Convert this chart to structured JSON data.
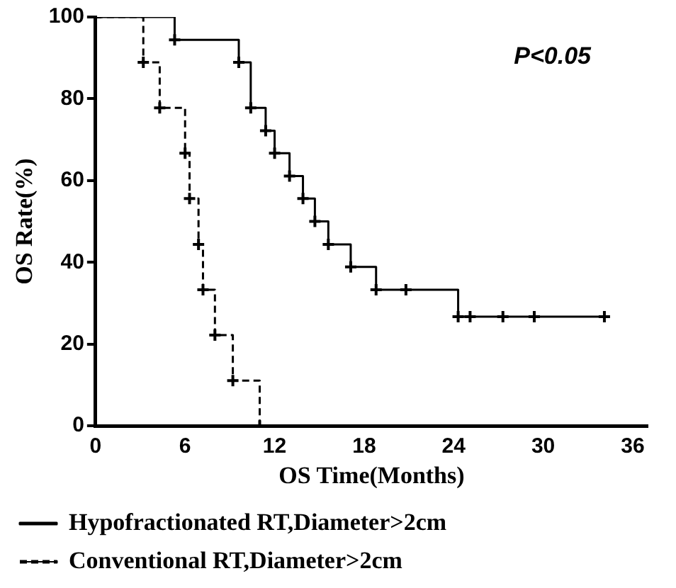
{
  "chart_data": {
    "type": "step",
    "xlabel": "OS Time(Months)",
    "ylabel": "OS Rate(%)",
    "xlim": [
      0,
      37
    ],
    "xticks": [
      0,
      6,
      12,
      18,
      24,
      30,
      36
    ],
    "ylim": [
      0,
      100
    ],
    "yticks": [
      0,
      20,
      40,
      60,
      80,
      100
    ],
    "grid": false,
    "legend": "bottom",
    "marker": "cross",
    "annotations": [
      "P<0.05"
    ],
    "series": [
      {
        "name": "Hypofractionated RT,Diameter>2cm",
        "color": "#000000",
        "line_style": "solid",
        "x": [
          0,
          5.3,
          9.6,
          10.4,
          11.4,
          12.0,
          13.0,
          13.9,
          14.7,
          15.6,
          17.1,
          18.8,
          20.8,
          24.3,
          25.1,
          27.3,
          29.4,
          34.1
        ],
        "values": [
          100,
          94.4,
          88.9,
          77.8,
          72.2,
          66.7,
          61.1,
          55.6,
          50,
          44.4,
          38.9,
          33.3,
          33.3,
          26.7,
          26.7,
          26.7,
          26.7,
          26.7
        ]
      },
      {
        "name": "Conventional RT,Diameter>2cm",
        "color": "#000000",
        "line_style": "dashed",
        "x": [
          0,
          3.2,
          4.3,
          6.0,
          6.3,
          6.9,
          7.2,
          8.0,
          9.2,
          11.0
        ],
        "values": [
          100,
          88.9,
          77.8,
          66.7,
          55.6,
          44.4,
          33.3,
          22.2,
          11.1,
          0
        ]
      }
    ]
  }
}
